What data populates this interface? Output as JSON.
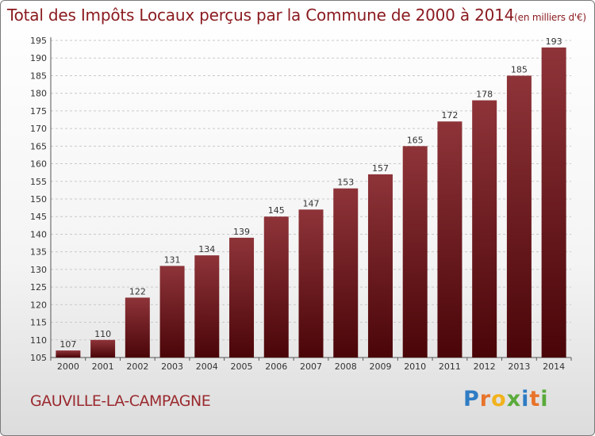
{
  "chart_data": {
    "type": "bar",
    "title": "Total des Impôts Locaux perçus par la Commune de 2000 à 2014",
    "unit_label": "(en milliers d'€)",
    "categories": [
      "2000",
      "2001",
      "2002",
      "2003",
      "2004",
      "2005",
      "2006",
      "2007",
      "2008",
      "2009",
      "2010",
      "2011",
      "2012",
      "2013",
      "2014"
    ],
    "values": [
      107,
      110,
      122,
      131,
      134,
      139,
      145,
      147,
      153,
      157,
      165,
      172,
      178,
      185,
      193
    ],
    "xlabel": "",
    "ylabel": "",
    "ylim": [
      105,
      195
    ],
    "yticks": [
      105,
      110,
      115,
      120,
      125,
      130,
      135,
      140,
      145,
      150,
      155,
      160,
      165,
      170,
      175,
      180,
      185,
      190,
      195
    ],
    "grid": "horizontal dashed",
    "bar_color": "#8b2a30"
  },
  "commune": "GAUVILLE-LA-CAMPAGNE",
  "logo": {
    "letters": [
      "P",
      "r",
      "o",
      "x",
      "i",
      "t",
      "i"
    ],
    "colors": [
      "#2e7cc4",
      "#e8732a",
      "#f2b21c",
      "#5aab3b",
      "#2e7cc4",
      "#e8732a",
      "#5aab3b"
    ]
  }
}
